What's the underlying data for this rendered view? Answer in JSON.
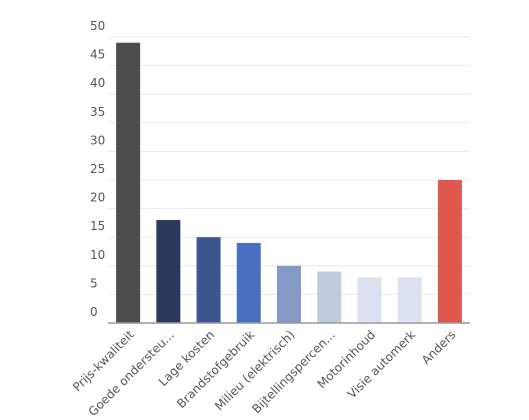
{
  "chart_data": {
    "type": "bar",
    "categories": [
      "Prijs-kwaliteit",
      "Goede ondersteu...",
      "Lage kosten",
      "Brandstofgebruik",
      "Milieu (elektrisch)",
      "Bijtellingspercen...",
      "Motorinhoud",
      "Visie automerk",
      "Anders"
    ],
    "values": [
      49,
      18,
      15,
      14,
      10,
      9,
      8,
      8,
      25
    ],
    "colors": [
      "#4d4d4d",
      "#2b3a5c",
      "#3b5690",
      "#4a6fc0",
      "#8499c6",
      "#c0cadd",
      "#dbe1ee",
      "#dbe1ee",
      "#e0574f"
    ],
    "ylim": [
      0,
      50
    ],
    "yticks": [
      0,
      5,
      10,
      15,
      20,
      25,
      30,
      35,
      40,
      45,
      50
    ],
    "grid": true
  }
}
